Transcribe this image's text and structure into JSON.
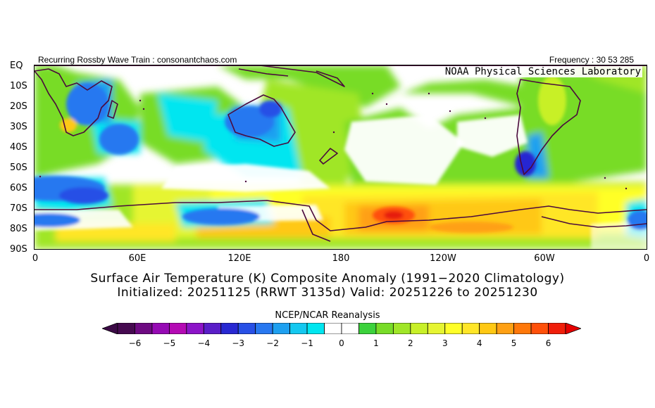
{
  "header": {
    "left_text": "Recurring Rossby Wave Train : consonantchaos.com",
    "right_text": "Frequency : 30 53 285",
    "lab_text": "NOAA Physical Sciences Laboratory"
  },
  "map": {
    "variable": "Surface Air Temperature anomaly",
    "units": "K",
    "region": "Equator to 90S, 0 to 360 longitude",
    "lat_labels": [
      "EQ",
      "10S",
      "20S",
      "30S",
      "40S",
      "50S",
      "60S",
      "70S",
      "80S",
      "90S"
    ],
    "lon_labels": [
      "0",
      "60E",
      "120E",
      "180",
      "120W",
      "60W",
      "0"
    ],
    "land_outline_color": "#4b0a3c"
  },
  "titles": {
    "line1": "Surface Air Temperature (K) Composite Anomaly (1991−2020 Climatology)",
    "line2": "Initialized: 20251125 (RRWT 3135d) Valid: 20251226 to 20251230"
  },
  "colorbar": {
    "source_label": "NCEP/NCAR Reanalysis",
    "tick_labels": [
      "−6",
      "−5",
      "−4",
      "−3",
      "−2",
      "−1",
      "0",
      "1",
      "2",
      "3",
      "4",
      "5",
      "6"
    ],
    "low_cap_color": "#3c0a46",
    "high_cap_color": "#e60000",
    "colors": [
      "#460a50",
      "#6e0a82",
      "#960ab4",
      "#b40ab4",
      "#8c14c8",
      "#5a1ec8",
      "#2828d2",
      "#2850e6",
      "#2878f0",
      "#1ea0f0",
      "#14c8f0",
      "#00e6f0",
      "#ffffff",
      "#ffffff",
      "#3cd23c",
      "#78dc28",
      "#a0e628",
      "#c8f028",
      "#e6f532",
      "#ffff28",
      "#ffe628",
      "#ffc814",
      "#ffa014",
      "#ff780a",
      "#ff500a",
      "#f01e0a"
    ]
  }
}
